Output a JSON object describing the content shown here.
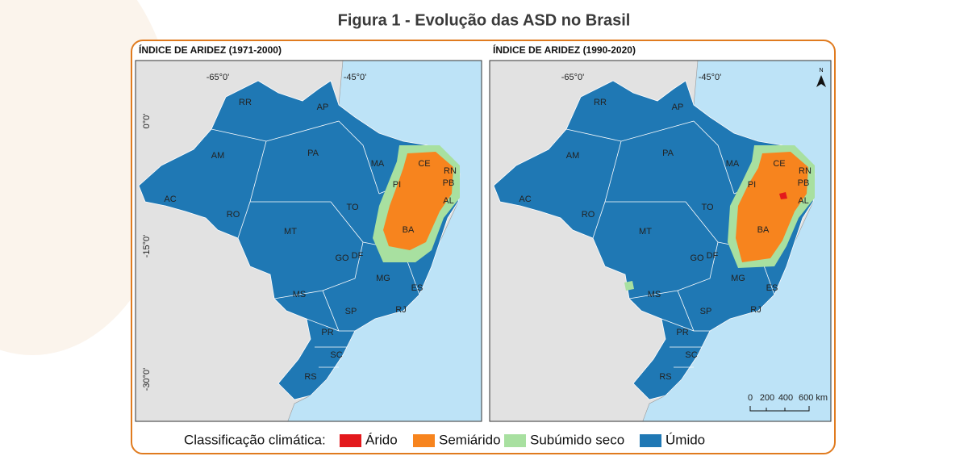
{
  "title": "Figura 1 - Evolução das ASD no Brasil",
  "panels": [
    {
      "title": "ÍNDICE DE ARIDEZ (1971-2000)",
      "longitude_labels": [
        "-65°0'",
        "-45°0'"
      ],
      "latitude_labels": [
        "0°0'",
        "-15°0'",
        "-30°0'"
      ],
      "states": [
        "AM",
        "RR",
        "AP",
        "PA",
        "MA",
        "CE",
        "RN",
        "PB",
        "PI",
        "AL",
        "TO",
        "BA",
        "AC",
        "RO",
        "MT",
        "GO",
        "DF",
        "MG",
        "ES",
        "MS",
        "SP",
        "RJ",
        "PR",
        "SC",
        "RS"
      ]
    },
    {
      "title": "ÍNDICE DE ARIDEZ (1990-2020)",
      "longitude_labels": [
        "-65°0'",
        "-45°0'"
      ],
      "states": [
        "AM",
        "RR",
        "AP",
        "PA",
        "MA",
        "CE",
        "RN",
        "PB",
        "PI",
        "AL",
        "TO",
        "BA",
        "AC",
        "RO",
        "MT",
        "GO",
        "DF",
        "MG",
        "ES",
        "MS",
        "SP",
        "RJ",
        "PR",
        "SC",
        "RS"
      ],
      "north_arrow": "N",
      "scale_bar": [
        "0",
        "200",
        "400",
        "600 km"
      ]
    }
  ],
  "legend": {
    "title": "Classificação climática:",
    "items": [
      {
        "label": "Árido",
        "color": "#e3191c"
      },
      {
        "label": "Semiárido",
        "color": "#f7841e"
      },
      {
        "label": "Subúmido seco",
        "color": "#a8e0a0"
      },
      {
        "label": "Úmido",
        "color": "#1f78b4"
      }
    ]
  }
}
